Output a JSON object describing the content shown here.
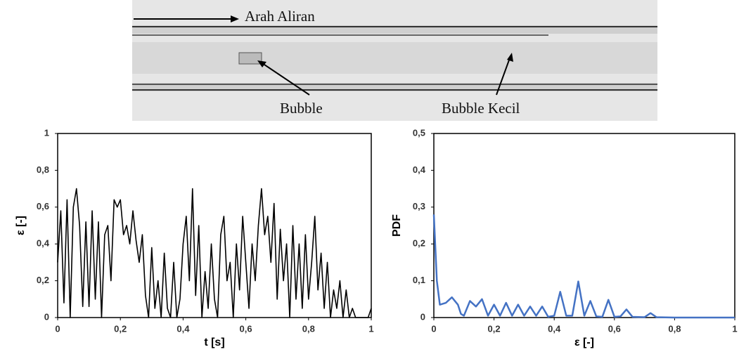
{
  "image": {
    "labels": [
      "Arah Aliran",
      "Bubble",
      "Bubble Kecil"
    ]
  },
  "chart_data": [
    {
      "type": "line",
      "xlabel": "t [s]",
      "ylabel": "ε [-]",
      "color": "#000000",
      "x": [
        0,
        0.01,
        0.02,
        0.03,
        0.04,
        0.05,
        0.06,
        0.07,
        0.08,
        0.09,
        0.1,
        0.11,
        0.12,
        0.13,
        0.14,
        0.15,
        0.16,
        0.17,
        0.18,
        0.19,
        0.2,
        0.21,
        0.22,
        0.23,
        0.24,
        0.25,
        0.26,
        0.27,
        0.28,
        0.29,
        0.3,
        0.31,
        0.32,
        0.33,
        0.34,
        0.35,
        0.36,
        0.37,
        0.38,
        0.39,
        0.4,
        0.41,
        0.42,
        0.43,
        0.44,
        0.45,
        0.46,
        0.47,
        0.48,
        0.49,
        0.5,
        0.51,
        0.52,
        0.53,
        0.54,
        0.55,
        0.56,
        0.57,
        0.58,
        0.59,
        0.6,
        0.61,
        0.62,
        0.63,
        0.64,
        0.65,
        0.66,
        0.67,
        0.68,
        0.69,
        0.7,
        0.71,
        0.72,
        0.73,
        0.74,
        0.75,
        0.76,
        0.77,
        0.78,
        0.79,
        0.8,
        0.81,
        0.82,
        0.83,
        0.84,
        0.85,
        0.86,
        0.87,
        0.88,
        0.89,
        0.9,
        0.91,
        0.92,
        0.93,
        0.94,
        0.95,
        0.96,
        0.97,
        0.98,
        0.99,
        1
      ],
      "values": [
        0.3,
        0.58,
        0.08,
        0.64,
        0,
        0.6,
        0.7,
        0.5,
        0.06,
        0.52,
        0.06,
        0.58,
        0.1,
        0.52,
        0,
        0.45,
        0.5,
        0.2,
        0.64,
        0.6,
        0.64,
        0.45,
        0.5,
        0.4,
        0.58,
        0.42,
        0.3,
        0.45,
        0.12,
        0,
        0.38,
        0.05,
        0.2,
        0,
        0.35,
        0.05,
        0,
        0.3,
        0,
        0.1,
        0.4,
        0.55,
        0.2,
        0.7,
        0.12,
        0.5,
        0,
        0.25,
        0.05,
        0.4,
        0.1,
        0,
        0.45,
        0.55,
        0.2,
        0.3,
        0,
        0.4,
        0.15,
        0.55,
        0.3,
        0.05,
        0.4,
        0.2,
        0.5,
        0.7,
        0.45,
        0.55,
        0.3,
        0.62,
        0.1,
        0.48,
        0.2,
        0.4,
        0,
        0.5,
        0.1,
        0.4,
        0.05,
        0.45,
        0.1,
        0.3,
        0.55,
        0.15,
        0.35,
        0.05,
        0.3,
        0,
        0.15,
        0.05,
        0.2,
        0,
        0.15,
        0,
        0.05,
        0,
        0,
        0,
        0,
        0,
        0.05
      ],
      "xlim": [
        0,
        1
      ],
      "ylim": [
        0,
        1
      ],
      "xticks": [
        0,
        {
          "value": 0.2,
          "label": "0,2"
        },
        {
          "value": 0.4,
          "label": "0,4"
        },
        {
          "value": 0.6,
          "label": "0,6"
        },
        {
          "value": 0.8,
          "label": "0,8"
        },
        1
      ],
      "yticks": [
        0,
        {
          "value": 0.2,
          "label": "0,2"
        },
        {
          "value": 0.4,
          "label": "0,4"
        },
        {
          "value": 0.6,
          "label": "0,6"
        },
        {
          "value": 0.8,
          "label": "0,8"
        },
        1
      ]
    },
    {
      "type": "line",
      "xlabel": "ε [-]",
      "ylabel": "PDF",
      "color": "#4472c4",
      "x": [
        0,
        0.01,
        0.02,
        0.04,
        0.06,
        0.08,
        0.09,
        0.1,
        0.12,
        0.14,
        0.16,
        0.18,
        0.2,
        0.22,
        0.24,
        0.26,
        0.28,
        0.3,
        0.32,
        0.34,
        0.36,
        0.38,
        0.4,
        0.42,
        0.44,
        0.46,
        0.48,
        0.5,
        0.52,
        0.54,
        0.56,
        0.58,
        0.6,
        0.62,
        0.64,
        0.66,
        0.7,
        0.72,
        0.74,
        0.8,
        1
      ],
      "values": [
        0.28,
        0.1,
        0.035,
        0.04,
        0.055,
        0.035,
        0.01,
        0.005,
        0.045,
        0.03,
        0.05,
        0.005,
        0.035,
        0.005,
        0.04,
        0.005,
        0.035,
        0.005,
        0.03,
        0.005,
        0.03,
        0.002,
        0.005,
        0.07,
        0.005,
        0.005,
        0.098,
        0.005,
        0.045,
        0.003,
        0.002,
        0.048,
        0.002,
        0.003,
        0.022,
        0.002,
        0.001,
        0.012,
        0.001,
        0,
        0
      ],
      "xlim": [
        0,
        1
      ],
      "ylim": [
        0,
        0.5
      ],
      "xticks": [
        0,
        {
          "value": 0.2,
          "label": "0,2"
        },
        {
          "value": 0.4,
          "label": "0,4"
        },
        {
          "value": 0.6,
          "label": "0,6"
        },
        {
          "value": 0.8,
          "label": "0,8"
        },
        1
      ],
      "yticks": [
        0,
        {
          "value": 0.1,
          "label": "0,1"
        },
        {
          "value": 0.2,
          "label": "0,2"
        },
        {
          "value": 0.3,
          "label": "0,3"
        },
        {
          "value": 0.4,
          "label": "0,4"
        },
        {
          "value": 0.5,
          "label": "0,5"
        }
      ]
    }
  ]
}
